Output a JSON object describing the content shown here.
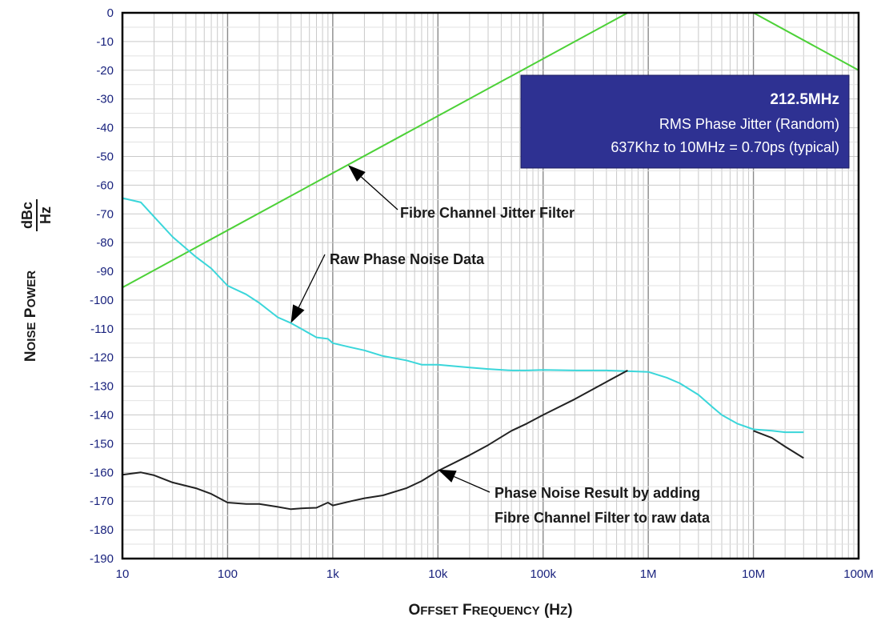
{
  "chart_data": {
    "type": "line",
    "x_scale": "log",
    "xlim": [
      10,
      100000000
    ],
    "ylim": [
      -190,
      0
    ],
    "grid": true,
    "xlabel": "Offset Frequency (Hz)",
    "ylabel": {
      "quantity": "Noise Power",
      "unit_numerator": "dBc",
      "unit_denominator": "Hz"
    },
    "x_ticks": [
      {
        "value": 10,
        "label": "10"
      },
      {
        "value": 100,
        "label": "100"
      },
      {
        "value": 1000,
        "label": "1k"
      },
      {
        "value": 10000,
        "label": "10k"
      },
      {
        "value": 100000,
        "label": "100k"
      },
      {
        "value": 1000000,
        "label": "1M"
      },
      {
        "value": 10000000,
        "label": "10M"
      },
      {
        "value": 100000000,
        "label": "100M"
      }
    ],
    "y_ticks": [
      {
        "value": 0,
        "label": "0"
      },
      {
        "value": -10,
        "label": "-10"
      },
      {
        "value": -20,
        "label": "-20"
      },
      {
        "value": -30,
        "label": "-30"
      },
      {
        "value": -40,
        "label": "-40"
      },
      {
        "value": -50,
        "label": "-50"
      },
      {
        "value": -60,
        "label": "-60"
      },
      {
        "value": -70,
        "label": "-70"
      },
      {
        "value": -80,
        "label": "-80"
      },
      {
        "value": -90,
        "label": "-90"
      },
      {
        "value": -100,
        "label": "-100"
      },
      {
        "value": -110,
        "label": "-110"
      },
      {
        "value": -120,
        "label": "-120"
      },
      {
        "value": -130,
        "label": "-130"
      },
      {
        "value": -140,
        "label": "-140"
      },
      {
        "value": -150,
        "label": "-150"
      },
      {
        "value": -160,
        "label": "-160"
      },
      {
        "value": -170,
        "label": "-170"
      },
      {
        "value": -180,
        "label": "-180"
      },
      {
        "value": -190,
        "label": "-190"
      }
    ],
    "series": [
      {
        "color": "#4cd137",
        "points": [
          [
            10,
            -95.6
          ],
          [
            637000,
            0
          ],
          [
            10000000,
            0
          ],
          [
            100000000,
            -20
          ]
        ]
      },
      {
        "color": "#3ad6da",
        "points": [
          [
            10,
            -64.5
          ],
          [
            15,
            -66
          ],
          [
            20,
            -71
          ],
          [
            30,
            -78
          ],
          [
            50,
            -85
          ],
          [
            70,
            -89
          ],
          [
            100,
            -95
          ],
          [
            150,
            -98
          ],
          [
            200,
            -101
          ],
          [
            300,
            -106
          ],
          [
            400,
            -108
          ],
          [
            500,
            -110
          ],
          [
            700,
            -113
          ],
          [
            900,
            -113.5
          ],
          [
            1000,
            -115
          ],
          [
            1500,
            -116.5
          ],
          [
            2000,
            -117.5
          ],
          [
            3000,
            -119.5
          ],
          [
            5000,
            -121
          ],
          [
            7000,
            -122.5
          ],
          [
            10000,
            -122.5
          ],
          [
            20000,
            -123.5
          ],
          [
            30000,
            -124
          ],
          [
            50000,
            -124.5
          ],
          [
            70000,
            -124.5
          ],
          [
            100000,
            -124.3
          ],
          [
            200000,
            -124.5
          ],
          [
            400000,
            -124.5
          ],
          [
            700000,
            -124.8
          ],
          [
            1000000,
            -125
          ],
          [
            1500000,
            -127
          ],
          [
            2000000,
            -129
          ],
          [
            3000000,
            -133
          ],
          [
            4000000,
            -137
          ],
          [
            5000000,
            -140
          ],
          [
            7000000,
            -143
          ],
          [
            10000000,
            -145
          ],
          [
            15000000,
            -145.5
          ],
          [
            20000000,
            -146
          ],
          [
            30000000,
            -146
          ]
        ]
      },
      {
        "color": "#222222",
        "points": [
          [
            10,
            -160.8
          ],
          [
            15,
            -160
          ],
          [
            20,
            -161
          ],
          [
            30,
            -163.5
          ],
          [
            50,
            -165.5
          ],
          [
            70,
            -167.5
          ],
          [
            100,
            -170.5
          ],
          [
            150,
            -171
          ],
          [
            200,
            -171
          ],
          [
            300,
            -172
          ],
          [
            400,
            -172.8
          ],
          [
            500,
            -172.5
          ],
          [
            700,
            -172.3
          ],
          [
            900,
            -170.5
          ],
          [
            1000,
            -171.5
          ],
          [
            1500,
            -170
          ],
          [
            2000,
            -169
          ],
          [
            3000,
            -168
          ],
          [
            5000,
            -165.5
          ],
          [
            7000,
            -163
          ],
          [
            10000,
            -159.5
          ],
          [
            20000,
            -154
          ],
          [
            30000,
            -150.5
          ],
          [
            50000,
            -145.5
          ],
          [
            70000,
            -143
          ],
          [
            100000,
            -140
          ],
          [
            200000,
            -134.5
          ],
          [
            400000,
            -128.5
          ],
          [
            637000,
            -124.5
          ]
        ]
      },
      {
        "color": "#222222",
        "points": [
          [
            10000000,
            -145.5
          ],
          [
            15000000,
            -148
          ],
          [
            20000000,
            -151
          ],
          [
            30000000,
            -155
          ]
        ]
      }
    ],
    "info_box": {
      "title": "212.5MHz",
      "line1": "RMS Phase Jitter  (Random)",
      "line2": "637Khz to 10MHz = 0.70ps (typical)",
      "background": "#2e3192"
    },
    "annotations": [
      {
        "text": "Fibre Channel Jitter Filter",
        "points_to": [
          1400,
          -53
        ]
      },
      {
        "text": "Raw Phase Noise Data",
        "points_to": [
          400,
          -108
        ]
      },
      {
        "text_lines": [
          "Phase Noise Result by adding",
          "Fibre Channel Filter to raw data"
        ],
        "points_to": [
          10000,
          -159
        ]
      }
    ]
  }
}
